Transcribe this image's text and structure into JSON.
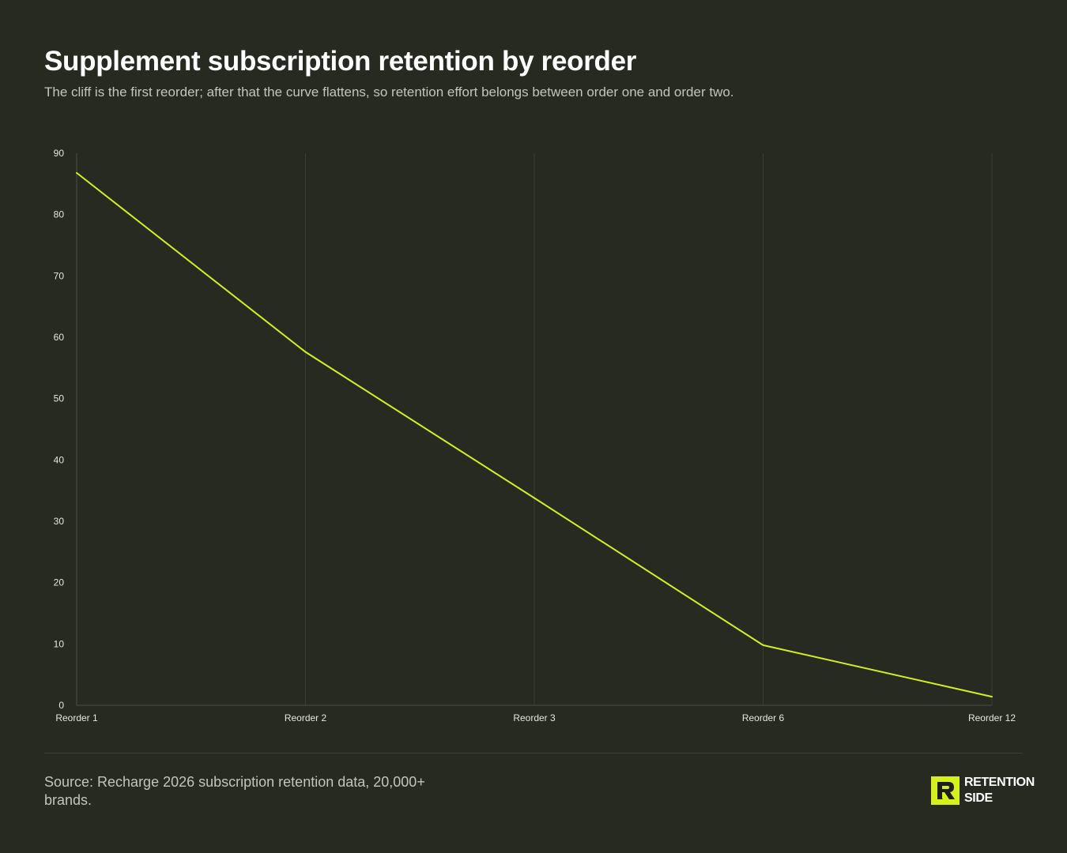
{
  "header": {
    "title": "Supplement subscription retention by reorder",
    "subtitle": "The cliff is the first reorder; after that the curve flattens, so retention effort belongs between order one and order two."
  },
  "chart_data": {
    "type": "line",
    "categories": [
      "Reorder 1",
      "Reorder 2",
      "Reorder 3",
      "Reorder 6",
      "Reorder 12"
    ],
    "series": [
      {
        "values": [
          86.8,
          57.6,
          33.8,
          9.8,
          1.4
        ]
      }
    ],
    "ylim": [
      0,
      90
    ],
    "yticks": [
      0,
      10,
      20,
      30,
      40,
      50,
      60,
      70,
      80,
      90
    ],
    "xlabel": "",
    "ylabel": "",
    "grid": "vertical",
    "line_color": "#d4f01e",
    "grid_color": "#3a3d34",
    "tick_label_color": "#e6e7e0"
  },
  "footer": {
    "source": "Source: Recharge 2026 subscription retention data, 20,000+ brands.",
    "logo_line1": "RETENTION",
    "logo_line2": "SIDE"
  },
  "colors": {
    "background": "#272a21",
    "accent": "#d4f01e"
  }
}
